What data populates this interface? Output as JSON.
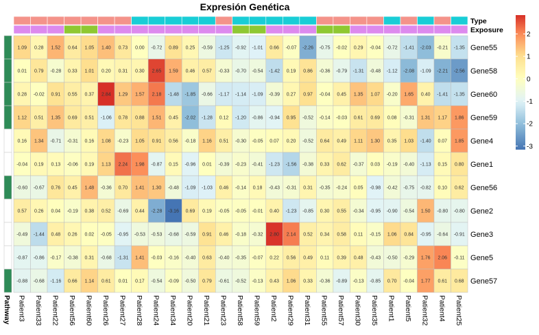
{
  "chart_data": {
    "type": "heatmap",
    "title": "Expresión Genética",
    "columns": [
      "Patient3",
      "Patient33",
      "Patient22",
      "Patient56",
      "Patient60",
      "Patient26",
      "Patient27",
      "Patient28",
      "Patient24",
      "Patient34",
      "Patient20",
      "Patient21",
      "Patient23",
      "Patient58",
      "Patient59",
      "Patient2",
      "Patient29",
      "Patient31",
      "Patient55",
      "Patient57",
      "Patient30",
      "Patient35",
      "Patient1",
      "Patient5",
      "Patient32",
      "Patient4",
      "Patient25"
    ],
    "rows": [
      "Gene55",
      "Gene58",
      "Gene60",
      "Gene59",
      "Gene4",
      "Gene1",
      "Gene56",
      "Gene2",
      "Gene3",
      "Gene5",
      "Gene57"
    ],
    "values": [
      [
        1.09,
        0.28,
        1.52,
        0.64,
        1.05,
        1.4,
        0.73,
        0.0,
        -0.72,
        0.89,
        0.25,
        -0.59,
        -1.25,
        -0.92,
        -1.01,
        0.66,
        -0.07,
        -2.26,
        -0.75,
        -0.02,
        0.29,
        -0.04,
        -0.72,
        -1.41,
        -2.03,
        -0.21,
        -1.35
      ],
      [
        0.01,
        0.79,
        -0.28,
        0.33,
        1.01,
        0.2,
        0.31,
        0.3,
        2.65,
        1.59,
        0.46,
        0.57,
        -0.33,
        -0.7,
        -0.54,
        -1.42,
        0.19,
        0.86,
        -0.36,
        -0.79,
        -1.31,
        -0.48,
        -1.12,
        -2.08,
        -1.09,
        -2.21,
        -2.56
      ],
      [
        0.28,
        -0.02,
        0.91,
        0.55,
        0.37,
        2.84,
        1.29,
        1.57,
        2.18,
        -1.48,
        -1.85,
        -0.66,
        -1.17,
        -1.14,
        -1.09,
        -0.39,
        0.27,
        0.97,
        -0.04,
        0.45,
        1.35,
        1.07,
        -0.2,
        1.65,
        0.4,
        -1.41,
        -1.35
      ],
      [
        1.12,
        0.51,
        1.35,
        0.69,
        0.51,
        -1.06,
        0.78,
        0.88,
        1.51,
        0.45,
        -2.02,
        -1.28,
        0.12,
        -1.2,
        -0.86,
        -0.94,
        0.95,
        -0.52,
        -0.14,
        -0.03,
        0.61,
        0.69,
        0.08,
        -0.31,
        1.31,
        1.17,
        1.86
      ],
      [
        0.16,
        1.34,
        -0.71,
        -0.31,
        0.16,
        1.08,
        -0.23,
        1.05,
        0.91,
        0.56,
        -0.18,
        1.16,
        0.51,
        -0.3,
        -0.05,
        0.07,
        0.2,
        -0.52,
        0.64,
        0.49,
        1.11,
        1.3,
        0.35,
        1.03,
        -1.4,
        0.07,
        1.85
      ],
      [
        -0.04,
        0.19,
        0.13,
        -0.06,
        0.19,
        1.13,
        2.24,
        1.98,
        -0.87,
        0.15,
        -0.96,
        0.01,
        -0.39,
        -0.23,
        -0.41,
        -1.23,
        -1.56,
        -0.38,
        0.33,
        0.62,
        -0.37,
        0.03,
        -0.19,
        -0.4,
        -1.13,
        0.15,
        0.8
      ],
      [
        -0.6,
        -0.67,
        0.76,
        0.45,
        1.48,
        -0.36,
        0.7,
        1.41,
        1.3,
        -0.48,
        -1.09,
        -1.03,
        0.46,
        -0.14,
        0.18,
        -0.43,
        -0.31,
        0.31,
        -0.35,
        -0.24,
        0.05,
        -0.98,
        -0.42,
        -0.75,
        -0.82,
        0.1,
        0.62
      ],
      [
        0.57,
        0.26,
        0.04,
        -0.19,
        0.38,
        0.52,
        -0.69,
        0.44,
        -2.28,
        -3.16,
        0.69,
        0.19,
        -0.05,
        -0.05,
        -0.01,
        0.4,
        -1.23,
        -0.85,
        0.3,
        0.55,
        -0.34,
        -0.95,
        -0.9,
        -0.54,
        1.5,
        -0.8,
        -0.8
      ],
      [
        -0.49,
        -1.44,
        0.48,
        0.26,
        0.02,
        -0.05,
        -0.95,
        -0.53,
        -0.53,
        -0.68,
        -0.59,
        0.91,
        0.46,
        -0.18,
        -0.32,
        2.8,
        2.14,
        0.52,
        0.34,
        0.58,
        0.11,
        -0.15,
        1.06,
        0.84,
        -0.95,
        -0.64,
        -0.91
      ],
      [
        -0.87,
        -0.86,
        -0.17,
        -0.38,
        0.31,
        -0.68,
        -1.31,
        1.41,
        -0.03,
        -0.16,
        -0.4,
        0.63,
        -0.4,
        -0.35,
        -0.07,
        0.22,
        0.56,
        0.49,
        0.11,
        0.39,
        0.48,
        -0.43,
        -0.5,
        -0.29,
        1.76,
        2.06,
        -0.11
      ],
      [
        -0.88,
        -0.68,
        -1.16,
        0.66,
        1.14,
        0.61,
        0.01,
        0.17,
        -0.54,
        -0.09,
        -0.5,
        0.79,
        -0.61,
        -0.52,
        -0.13,
        0.43,
        1.06,
        0.33,
        -0.36,
        -0.89,
        -0.13,
        -0.85,
        0.7,
        -0.04,
        1.77,
        0.61,
        0.68
      ]
    ],
    "color_scale": {
      "stops": [
        [
          -3.16,
          "#4575b4"
        ],
        [
          -2,
          "#91bfdb"
        ],
        [
          -1,
          "#e0f3f8"
        ],
        [
          0,
          "#ffffbf"
        ],
        [
          1,
          "#fee090"
        ],
        [
          2,
          "#fc8d59"
        ],
        [
          2.84,
          "#d73027"
        ]
      ],
      "ticks": [
        2,
        1,
        0,
        -1,
        -2,
        -3
      ]
    },
    "legend_placement": "right",
    "column_annotations": [
      {
        "label": "Type",
        "colors": [
          "#f4938a",
          "#f4938a",
          "#f4938a",
          "#f4938a",
          "#f4938a",
          "#f4938a",
          "#f4938a",
          "#19cdd6",
          "#19cdd6",
          "#19cdd6",
          "#19cdd6",
          "#19cdd6",
          "#f4938a",
          "#19cdd6",
          "#19cdd6",
          "#19cdd6",
          "#19cdd6",
          "#19cdd6",
          "#f4938a",
          "#f4938a",
          "#f4938a",
          "#f4938a",
          "#19cdd6",
          "#f4938a",
          "#19cdd6",
          "#f4938a",
          "#19cdd6"
        ]
      },
      {
        "label": "Exposure",
        "colors": [
          "#dd8aee",
          "#dd8aee",
          "#dd8aee",
          "#8fc832",
          "#8fc832",
          "#dd8aee",
          "#dd8aee",
          "#dd8aee",
          "#dd8aee",
          "#dd8aee",
          "#dd8aee",
          "#dd8aee",
          "#dd8aee",
          "#8fc832",
          "#8fc832",
          "#dd8aee",
          "#dd8aee",
          "#dd8aee",
          "#8fc832",
          "#8fc832",
          "#dd8aee",
          "#dd8aee",
          "#dd8aee",
          "#dd8aee",
          "#dd8aee",
          "#dd8aee",
          "#dd8aee"
        ]
      }
    ],
    "row_annotation": {
      "label": "Pathway",
      "colors": [
        "#2e8b57",
        "#2e8b57",
        "#2e8b57",
        "#2e8b57",
        "#ffffff",
        "#ffffff",
        "#2e8b57",
        "#ffffff",
        "#ffffff",
        "#ffffff",
        "#2e8b57"
      ]
    }
  }
}
